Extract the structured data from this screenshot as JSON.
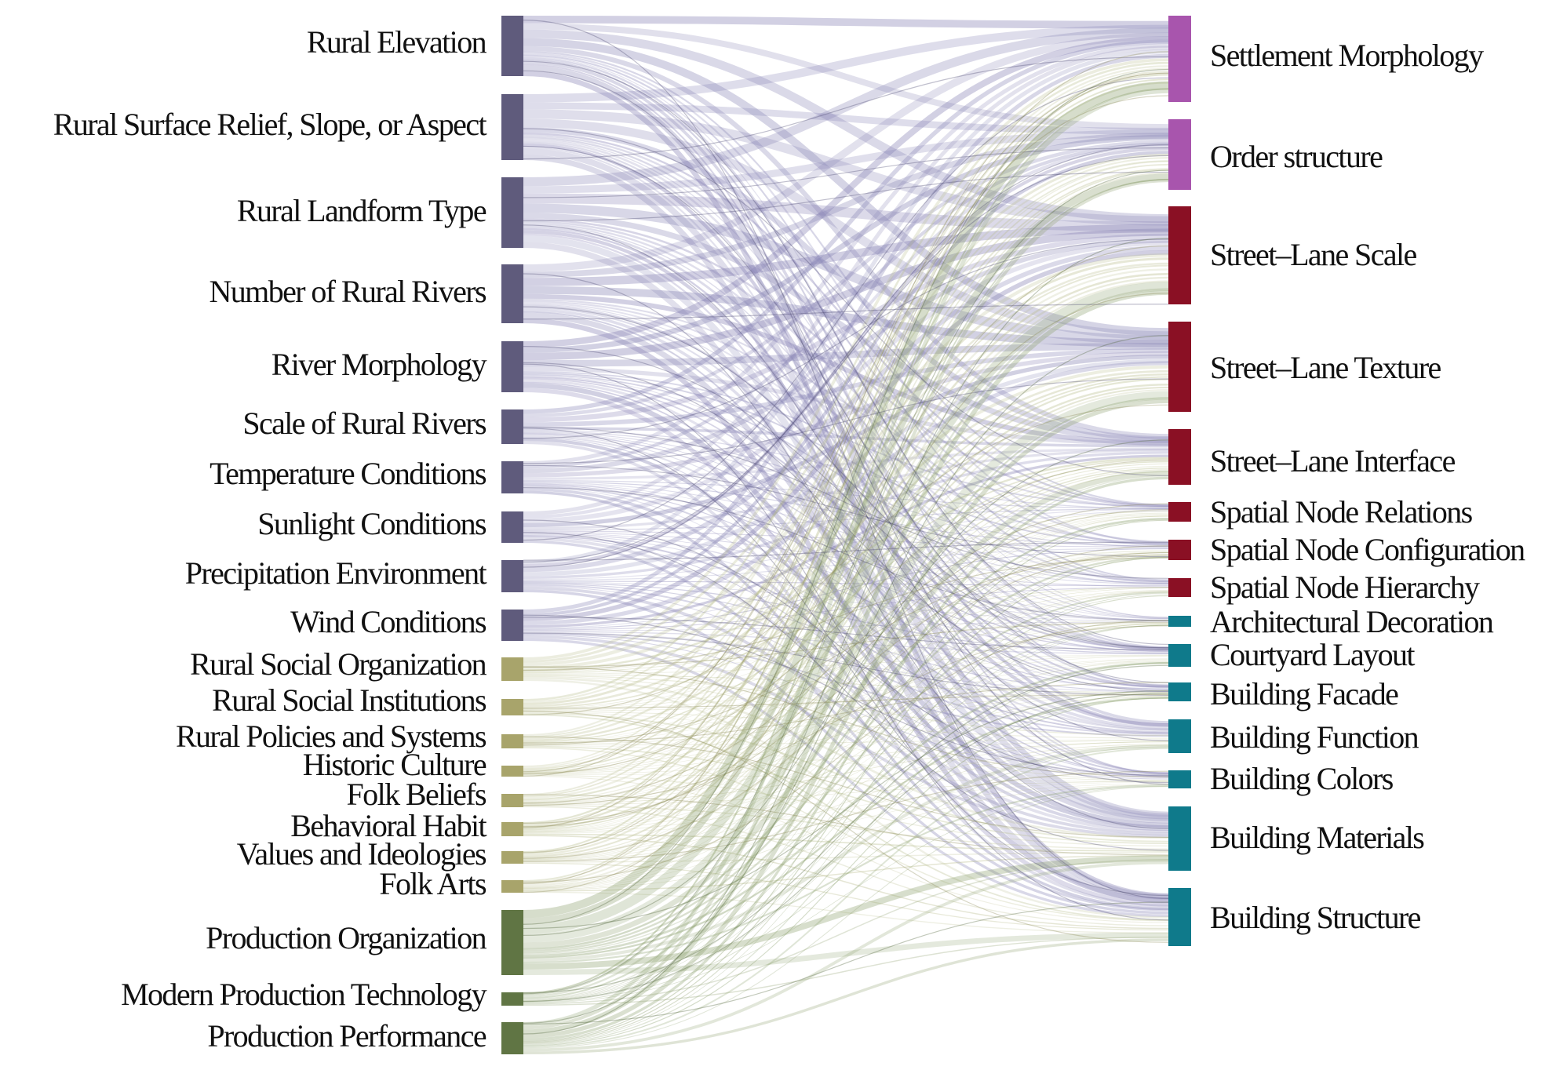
{
  "diagram": {
    "type": "sankey",
    "colors": {
      "natural": "#5f5b7c",
      "social": "#a8a46b",
      "production": "#607544",
      "settlement": "#a855ad",
      "street": "#8a1024",
      "building": "#0f7a8b",
      "flow_natural": "#8a86b6",
      "flow_social": "#b9bd8d",
      "flow_production": "#8a9e6b"
    },
    "left_nodes": [
      {
        "label": "Rural Elevation",
        "group": "natural"
      },
      {
        "label": "Rural Surface Relief, Slope, or Aspect",
        "group": "natural"
      },
      {
        "label": "Rural Landform Type",
        "group": "natural"
      },
      {
        "label": "Number of Rural Rivers",
        "group": "natural"
      },
      {
        "label": "River Morphology",
        "group": "natural"
      },
      {
        "label": "Scale of Rural Rivers",
        "group": "natural"
      },
      {
        "label": "Temperature Conditions",
        "group": "natural"
      },
      {
        "label": "Sunlight Conditions",
        "group": "natural"
      },
      {
        "label": "Precipitation Environment",
        "group": "natural"
      },
      {
        "label": "Wind Conditions",
        "group": "natural"
      },
      {
        "label": "Rural Social Organization",
        "group": "social"
      },
      {
        "label": "Rural Social Institutions",
        "group": "social"
      },
      {
        "label": "Rural Policies and Systems",
        "group": "social"
      },
      {
        "label": "Historic Culture",
        "group": "social"
      },
      {
        "label": "Folk Beliefs",
        "group": "social"
      },
      {
        "label": "Behavioral Habit",
        "group": "social"
      },
      {
        "label": "Values and Ideologies",
        "group": "social"
      },
      {
        "label": "Folk Arts",
        "group": "social"
      },
      {
        "label": "Production Organization",
        "group": "production"
      },
      {
        "label": "Modern Production Technology",
        "group": "production"
      },
      {
        "label": "Production Performance",
        "group": "production"
      }
    ],
    "right_nodes": [
      {
        "label": "Settlement Morphology",
        "group": "settlement"
      },
      {
        "label": "Order structure",
        "group": "settlement"
      },
      {
        "label": "Street–Lane Scale",
        "group": "street"
      },
      {
        "label": "Street–Lane Texture",
        "group": "street"
      },
      {
        "label": "Street–Lane Interface",
        "group": "street"
      },
      {
        "label": "Spatial Node Relations",
        "group": "street"
      },
      {
        "label": "Spatial Node Configuration",
        "group": "street"
      },
      {
        "label": "Spatial Node Hierarchy",
        "group": "street"
      },
      {
        "label": "Architectural Decoration",
        "group": "building"
      },
      {
        "label": "Courtyard Layout",
        "group": "building"
      },
      {
        "label": "Building Facade",
        "group": "building"
      },
      {
        "label": "Building Function",
        "group": "building"
      },
      {
        "label": "Building Colors",
        "group": "building"
      },
      {
        "label": "Building Materials",
        "group": "building"
      },
      {
        "label": "Building Structure",
        "group": "building"
      }
    ]
  }
}
